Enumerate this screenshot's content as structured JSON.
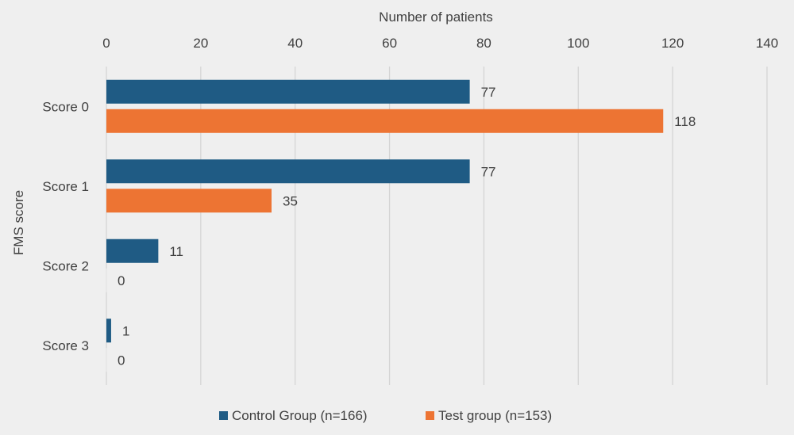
{
  "chart_data": {
    "type": "bar",
    "orientation": "horizontal",
    "title": "",
    "xlabel": "Number of patients",
    "ylabel": "FMS score",
    "xlim": [
      0,
      140
    ],
    "x_ticks": [
      0,
      20,
      40,
      60,
      80,
      100,
      120,
      140
    ],
    "x_axis_position": "top",
    "grid": true,
    "categories": [
      "Score 0",
      "Score 1",
      "Score 2",
      "Score 3"
    ],
    "series": [
      {
        "name": "Control Group (n=166)",
        "color": "#1f5b84",
        "values": [
          77,
          77,
          11,
          1
        ]
      },
      {
        "name": "Test group (n=153)",
        "color": "#ed7433",
        "values": [
          118,
          35,
          0,
          0
        ]
      }
    ],
    "legend_position": "bottom"
  }
}
